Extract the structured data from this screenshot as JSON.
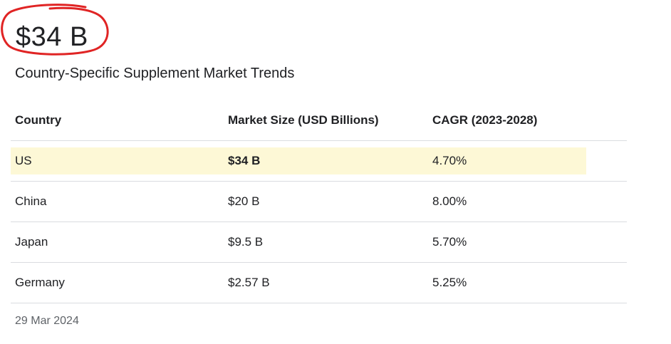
{
  "highlight": {
    "value": "$34 B",
    "circle_color": "#e02424"
  },
  "title": "Country-Specific Supplement Market Trends",
  "table": {
    "headers": [
      "Country",
      "Market Size (USD Billions)",
      "CAGR (2023-2028)"
    ],
    "rows": [
      {
        "country": "US",
        "market_size": "$34 B",
        "cagr": "4.70%",
        "highlighted": true
      },
      {
        "country": "China",
        "market_size": "$20 B",
        "cagr": "8.00%",
        "highlighted": false
      },
      {
        "country": "Japan",
        "market_size": "$9.5 B",
        "cagr": "5.70%",
        "highlighted": false
      },
      {
        "country": "Germany",
        "market_size": "$2.57 B",
        "cagr": "5.25%",
        "highlighted": false
      }
    ]
  },
  "date": "29 Mar 2024",
  "colors": {
    "highlight_row": "#fdf8d6",
    "divider": "#dadce0",
    "muted_text": "#5f6368"
  }
}
